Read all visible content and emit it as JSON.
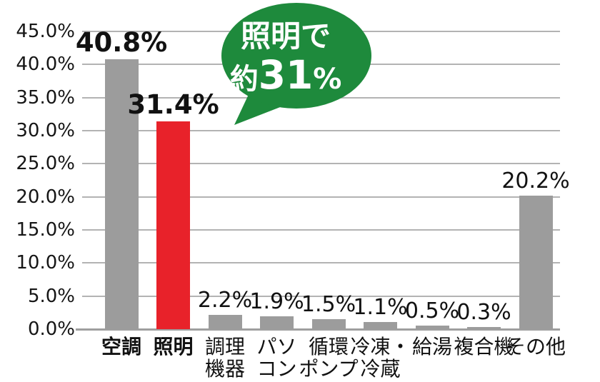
{
  "colors": {
    "bar": "#9c9c9c",
    "highlight": "#e8222a",
    "bubble": "#1e8a3c",
    "bubble_text": "#ffffff",
    "grid": "#b3b3b3",
    "axis": "#9f9f9f",
    "text": "#111111"
  },
  "bubble": {
    "line1": "照明で",
    "line2_prefix": "約",
    "line2_number": "31",
    "line2_suffix": "%"
  },
  "chart_data": {
    "type": "bar",
    "title": "",
    "xlabel": "",
    "ylabel": "",
    "categories": [
      "空調",
      "照明",
      "調理機器",
      "パソコン",
      "循環ポンプ",
      "冷凍・冷蔵",
      "給湯",
      "複合機",
      "その他"
    ],
    "category_lines": [
      [
        "空調"
      ],
      [
        "照明"
      ],
      [
        "調理",
        "機器"
      ],
      [
        "パソ",
        "コン"
      ],
      [
        "循環",
        "ポンプ"
      ],
      [
        "冷凍・",
        "冷蔵"
      ],
      [
        "給湯"
      ],
      [
        "複合機"
      ],
      [
        "その他"
      ]
    ],
    "bold_categories": [
      true,
      true,
      false,
      false,
      false,
      false,
      false,
      false,
      false
    ],
    "values": [
      40.8,
      31.4,
      2.2,
      1.9,
      1.5,
      1.1,
      0.5,
      0.3,
      20.2
    ],
    "value_labels": [
      "40.8%",
      "31.4%",
      "2.2%",
      "1.9%",
      "1.5%",
      "1.1%",
      "0.5%",
      "0.3%",
      "20.2%"
    ],
    "highlight_index": 1,
    "y_ticks": [
      "45.0%",
      "40.0%",
      "35.0%",
      "30.0%",
      "25.0%",
      "20.0%",
      "15.0%",
      "10.0%",
      "5.0%",
      "0.0%"
    ],
    "ylim": [
      0,
      45
    ],
    "grid": true,
    "legend": null,
    "annotation": "照明で約31%"
  }
}
